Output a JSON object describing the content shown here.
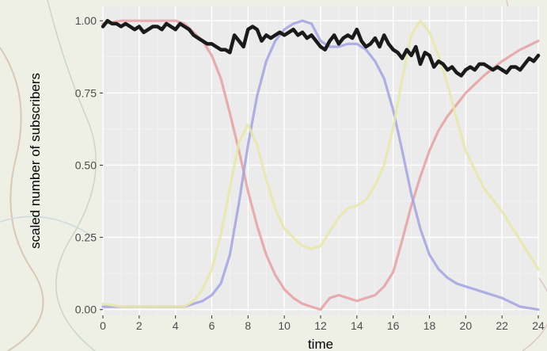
{
  "chart_data": {
    "type": "line",
    "xlabel": "time",
    "ylabel": "scaled number of subscribers",
    "xlim": [
      0,
      24
    ],
    "ylim": [
      -0.02,
      1.05
    ],
    "x_ticks": [
      0,
      2,
      4,
      6,
      8,
      10,
      12,
      14,
      16,
      18,
      20,
      22,
      24
    ],
    "y_ticks": [
      0.0,
      0.25,
      0.5,
      0.75,
      1.0
    ],
    "y_tick_labels": [
      "0.00",
      "0.25",
      "0.50",
      "0.75",
      "1.00"
    ],
    "x_tick_labels": [
      "0",
      "2",
      "4",
      "6",
      "8",
      "10",
      "12",
      "14",
      "16",
      "18",
      "20",
      "22",
      "24"
    ],
    "grid": true,
    "legend": "none",
    "series": [
      {
        "color": "#e8a0a0",
        "style": "faded",
        "x": [
          0,
          1,
          2,
          3,
          4,
          4.5,
          5,
          5.5,
          6,
          6.5,
          7,
          7.5,
          8,
          8.5,
          9,
          9.5,
          10,
          10.5,
          11,
          11.5,
          12,
          12.5,
          13,
          13.5,
          14,
          14.5,
          15,
          15.5,
          16,
          16.5,
          17,
          17.5,
          18,
          18.5,
          19,
          19.5,
          20,
          21,
          22,
          23,
          24
        ],
        "values": [
          0.99,
          1.0,
          1.0,
          1.0,
          1.0,
          0.99,
          0.96,
          0.93,
          0.88,
          0.8,
          0.68,
          0.55,
          0.41,
          0.29,
          0.19,
          0.12,
          0.07,
          0.04,
          0.02,
          0.01,
          0.0,
          0.04,
          0.05,
          0.04,
          0.03,
          0.04,
          0.05,
          0.08,
          0.13,
          0.24,
          0.36,
          0.46,
          0.55,
          0.62,
          0.67,
          0.71,
          0.75,
          0.81,
          0.86,
          0.9,
          0.93
        ]
      },
      {
        "color": "#a3a3e3",
        "style": "faded",
        "x": [
          0,
          1,
          2,
          3,
          4,
          4.5,
          5,
          5.5,
          6,
          6.5,
          7,
          7.5,
          8,
          8.5,
          9,
          9.5,
          10,
          10.5,
          11,
          11.5,
          12,
          12.5,
          13,
          13.5,
          14,
          14.5,
          15,
          15.5,
          16,
          16.5,
          17,
          17.5,
          18,
          18.5,
          19,
          19.5,
          20,
          21,
          22,
          23,
          24
        ],
        "values": [
          0.01,
          0.01,
          0.01,
          0.01,
          0.01,
          0.01,
          0.02,
          0.03,
          0.05,
          0.09,
          0.19,
          0.37,
          0.57,
          0.74,
          0.86,
          0.93,
          0.97,
          0.99,
          1.0,
          0.99,
          0.93,
          0.91,
          0.91,
          0.92,
          0.92,
          0.9,
          0.86,
          0.8,
          0.69,
          0.55,
          0.4,
          0.28,
          0.19,
          0.14,
          0.11,
          0.09,
          0.08,
          0.06,
          0.04,
          0.01,
          0.0
        ]
      },
      {
        "color": "#e8e8a8",
        "style": "faded",
        "x": [
          0,
          1,
          2,
          3,
          4,
          4.5,
          5,
          5.5,
          6,
          6.5,
          7,
          7.5,
          8,
          8.5,
          9,
          9.5,
          10,
          10.5,
          11,
          11.5,
          12,
          12.5,
          13,
          13.5,
          14,
          14.5,
          15,
          15.5,
          16,
          16.5,
          17,
          17.5,
          18,
          18.5,
          19,
          19.5,
          20,
          21,
          22,
          23,
          24
        ],
        "values": [
          0.02,
          0.01,
          0.01,
          0.01,
          0.01,
          0.01,
          0.03,
          0.07,
          0.14,
          0.26,
          0.42,
          0.58,
          0.64,
          0.57,
          0.45,
          0.35,
          0.28,
          0.25,
          0.22,
          0.21,
          0.22,
          0.27,
          0.32,
          0.35,
          0.36,
          0.38,
          0.43,
          0.5,
          0.63,
          0.8,
          0.95,
          1.0,
          0.96,
          0.88,
          0.78,
          0.66,
          0.55,
          0.42,
          0.34,
          0.24,
          0.14
        ]
      },
      {
        "color": "#1a1a1a",
        "style": "bold",
        "x": [
          0,
          0.25,
          0.5,
          0.75,
          1,
          1.25,
          1.5,
          1.75,
          2,
          2.25,
          2.5,
          2.75,
          3,
          3.25,
          3.5,
          3.75,
          4,
          4.25,
          4.5,
          4.75,
          5,
          5.25,
          5.5,
          5.75,
          6,
          6.25,
          6.5,
          6.75,
          7,
          7.25,
          7.5,
          7.75,
          8,
          8.25,
          8.5,
          8.75,
          9,
          9.25,
          9.5,
          9.75,
          10,
          10.25,
          10.5,
          10.75,
          11,
          11.25,
          11.5,
          11.75,
          12,
          12.25,
          12.5,
          12.75,
          13,
          13.25,
          13.5,
          13.75,
          14,
          14.25,
          14.5,
          14.75,
          15,
          15.25,
          15.5,
          15.75,
          16,
          16.25,
          16.5,
          16.75,
          17,
          17.25,
          17.5,
          17.75,
          18,
          18.25,
          18.5,
          18.75,
          19,
          19.25,
          19.5,
          19.75,
          20,
          20.25,
          20.5,
          20.75,
          21,
          21.25,
          21.5,
          21.75,
          22,
          22.25,
          22.5,
          22.75,
          23,
          23.25,
          23.5,
          23.75,
          24
        ],
        "values": [
          0.98,
          1.0,
          0.99,
          0.99,
          0.98,
          0.99,
          0.98,
          0.97,
          0.98,
          0.96,
          0.97,
          0.98,
          0.98,
          0.97,
          0.99,
          0.98,
          0.97,
          0.99,
          0.98,
          0.97,
          0.95,
          0.94,
          0.93,
          0.92,
          0.92,
          0.91,
          0.9,
          0.9,
          0.89,
          0.95,
          0.93,
          0.91,
          0.97,
          0.98,
          0.97,
          0.93,
          0.95,
          0.94,
          0.95,
          0.96,
          0.95,
          0.96,
          0.97,
          0.95,
          0.96,
          0.94,
          0.95,
          0.93,
          0.91,
          0.9,
          0.93,
          0.95,
          0.92,
          0.94,
          0.95,
          0.94,
          0.97,
          0.93,
          0.91,
          0.92,
          0.94,
          0.91,
          0.95,
          0.92,
          0.9,
          0.89,
          0.87,
          0.9,
          0.88,
          0.91,
          0.85,
          0.89,
          0.88,
          0.84,
          0.86,
          0.85,
          0.83,
          0.84,
          0.82,
          0.81,
          0.83,
          0.84,
          0.83,
          0.85,
          0.85,
          0.84,
          0.83,
          0.84,
          0.83,
          0.82,
          0.84,
          0.84,
          0.83,
          0.85,
          0.87,
          0.86,
          0.88
        ]
      }
    ]
  }
}
